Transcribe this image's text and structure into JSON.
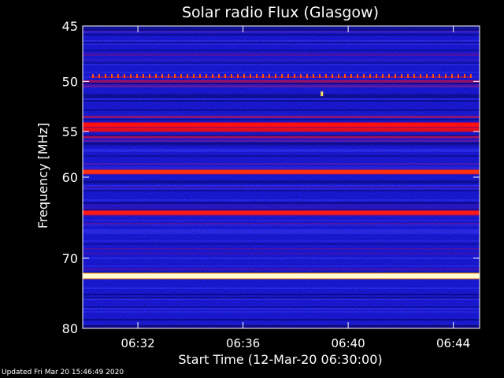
{
  "chart_data": {
    "type": "heatmap",
    "title": "Solar radio Flux (Glasgow)",
    "ylabel": "Frequency [MHz]",
    "xlabel": "Start Time (12-Mar-20 06:30:00)",
    "ylim": [
      45,
      80
    ],
    "y_scale": "log",
    "y_inverted": true,
    "y_ticks": [
      {
        "value": 45,
        "label": "45"
      },
      {
        "value": 50,
        "label": "50"
      },
      {
        "value": 55,
        "label": "55"
      },
      {
        "value": 60,
        "label": "60"
      },
      {
        "value": 70,
        "label": "70"
      },
      {
        "value": 80,
        "label": "80"
      }
    ],
    "x_range": [
      "06:29:54",
      "06:45:00"
    ],
    "x_ticks": [
      {
        "value": "06:32",
        "label": "06:32"
      },
      {
        "value": "06:36",
        "label": "06:36"
      },
      {
        "value": "06:40",
        "label": "06:40"
      },
      {
        "value": "06:44",
        "label": "06:44"
      }
    ],
    "background_color": "#1a1adc",
    "bands": [
      {
        "freq": 45.5,
        "intensity": "low",
        "color": "#5020b0"
      },
      {
        "freq": 48.0,
        "intensity": "low",
        "color": "#3a1ec0"
      },
      {
        "freq": 49.6,
        "intensity": "high-pulsed",
        "color": "#ff5010"
      },
      {
        "freq": 50.0,
        "intensity": "medium",
        "color": "#a01060"
      },
      {
        "freq": 50.5,
        "intensity": "low",
        "color": "#7a1890"
      },
      {
        "freq": 53.5,
        "intensity": "medium",
        "color": "#901470"
      },
      {
        "freq": 54.3,
        "intensity": "high",
        "color": "#ff1010"
      },
      {
        "freq": 54.8,
        "intensity": "high",
        "color": "#e00c20"
      },
      {
        "freq": 55.6,
        "intensity": "medium",
        "color": "#a01060"
      },
      {
        "freq": 56.0,
        "intensity": "low",
        "color": "#7a1890"
      },
      {
        "freq": 58.5,
        "intensity": "low",
        "color": "#5e1ca8"
      },
      {
        "freq": 59.4,
        "intensity": "high",
        "color": "#ff3010"
      },
      {
        "freq": 64.2,
        "intensity": "high",
        "color": "#ff1818"
      },
      {
        "freq": 72.4,
        "intensity": "very-high",
        "color": "#fffcd0"
      }
    ],
    "burst": {
      "time": "06:39:00",
      "freq": 51.2,
      "color": "#ffe060"
    },
    "colors": {
      "dark": "#080870",
      "base": "#1a1adc",
      "mid": "#8a1088",
      "hot": "#ff1010",
      "peak": "#fffcd0"
    }
  },
  "footer": {
    "updated": "Updated Fri Mar 20 15:46:49 2020"
  }
}
